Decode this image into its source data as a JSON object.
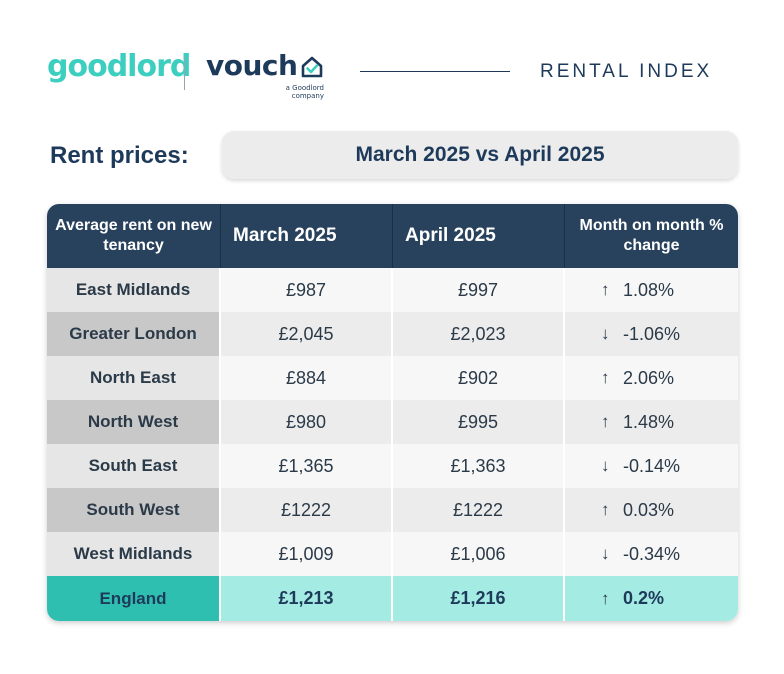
{
  "header": {
    "brand_primary": "goodlord",
    "brand_secondary": "vouch",
    "brand_secondary_sub_line1": "a Goodlord",
    "brand_secondary_sub_line2": "company",
    "report_title": "RENTAL INDEX"
  },
  "heading": {
    "label": "Rent prices:",
    "period": "March 2025 vs April 2025"
  },
  "table": {
    "columns": [
      "Average rent on new tenancy",
      "March 2025",
      "April 2025",
      "Month on month % change"
    ],
    "rows": [
      {
        "region": "East Midlands",
        "march": "£987",
        "april": "£997",
        "direction": "↑",
        "change": "1.08%"
      },
      {
        "region": "Greater London",
        "march": "£2,045",
        "april": "£2,023",
        "direction": "↓",
        "change": "-1.06%"
      },
      {
        "region": "North East",
        "march": "£884",
        "april": "£902",
        "direction": "↑",
        "change": "2.06%"
      },
      {
        "region": "North West",
        "march": "£980",
        "april": "£995",
        "direction": "↑",
        "change": "1.48%"
      },
      {
        "region": "South East",
        "march": "£1,365",
        "april": "£1,363",
        "direction": "↓",
        "change": "-0.14%"
      },
      {
        "region": "South West",
        "march": "£1222",
        "april": "£1222",
        "direction": "↑",
        "change": "0.03%"
      },
      {
        "region": "West Midlands",
        "march": "£1,009",
        "april": "£1,006",
        "direction": "↓",
        "change": "-0.34%"
      }
    ],
    "total": {
      "region": "England",
      "march": "£1,213",
      "april": "£1,216",
      "direction": "↑",
      "change": "0.2%"
    }
  },
  "colors": {
    "navy": "#28425d",
    "teal": "#2fbfb0",
    "teal_light": "#a4ece3",
    "brand_teal": "#3ccfc0"
  }
}
